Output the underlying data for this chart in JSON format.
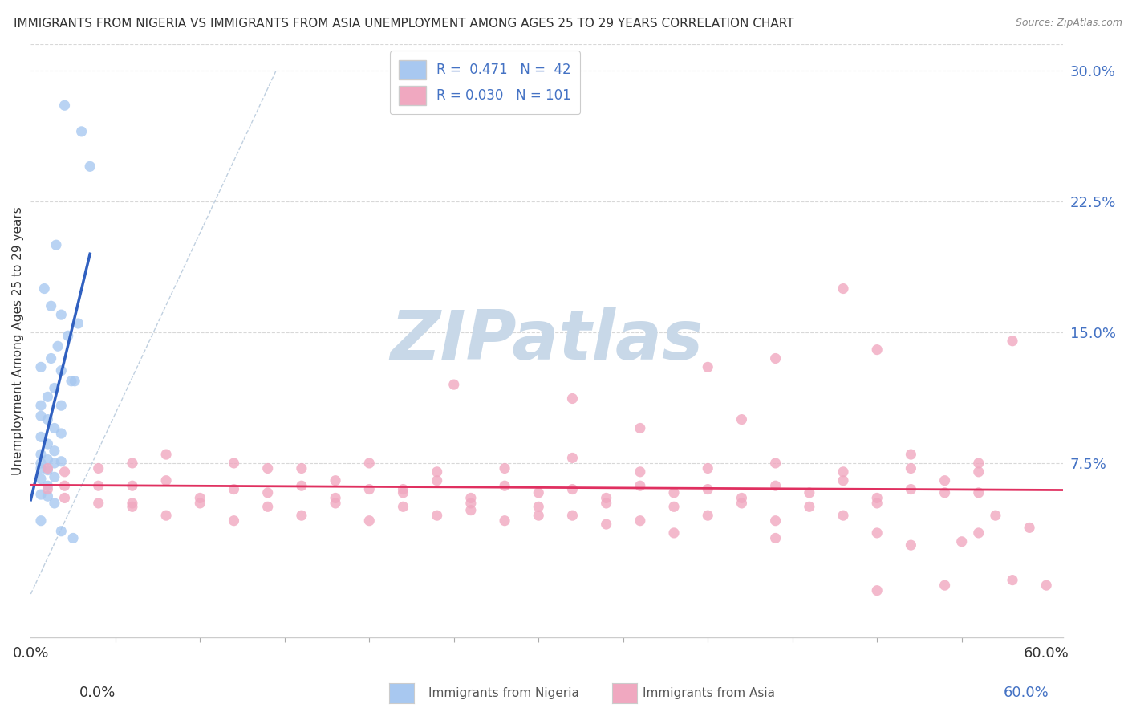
{
  "title": "IMMIGRANTS FROM NIGERIA VS IMMIGRANTS FROM ASIA UNEMPLOYMENT AMONG AGES 25 TO 29 YEARS CORRELATION CHART",
  "source": "Source: ZipAtlas.com",
  "ylabel": "Unemployment Among Ages 25 to 29 years",
  "nigeria_R": 0.471,
  "nigeria_N": 42,
  "asia_R": 0.03,
  "asia_N": 101,
  "nigeria_color": "#a8c8f0",
  "asia_color": "#f0a8c0",
  "nigeria_trend_color": "#3060c0",
  "asia_trend_color": "#e03060",
  "nigeria_scatter": [
    [
      0.02,
      0.28
    ],
    [
      0.03,
      0.265
    ],
    [
      0.035,
      0.245
    ],
    [
      0.015,
      0.2
    ],
    [
      0.008,
      0.175
    ],
    [
      0.012,
      0.165
    ],
    [
      0.018,
      0.16
    ],
    [
      0.028,
      0.155
    ],
    [
      0.022,
      0.148
    ],
    [
      0.016,
      0.142
    ],
    [
      0.012,
      0.135
    ],
    [
      0.006,
      0.13
    ],
    [
      0.018,
      0.128
    ],
    [
      0.024,
      0.122
    ],
    [
      0.014,
      0.118
    ],
    [
      0.026,
      0.122
    ],
    [
      0.01,
      0.113
    ],
    [
      0.006,
      0.108
    ],
    [
      0.018,
      0.108
    ],
    [
      0.006,
      0.102
    ],
    [
      0.01,
      0.1
    ],
    [
      0.014,
      0.095
    ],
    [
      0.018,
      0.092
    ],
    [
      0.006,
      0.09
    ],
    [
      0.01,
      0.086
    ],
    [
      0.014,
      0.082
    ],
    [
      0.006,
      0.08
    ],
    [
      0.01,
      0.077
    ],
    [
      0.006,
      0.075
    ],
    [
      0.014,
      0.075
    ],
    [
      0.018,
      0.076
    ],
    [
      0.006,
      0.072
    ],
    [
      0.01,
      0.071
    ],
    [
      0.014,
      0.067
    ],
    [
      0.006,
      0.066
    ],
    [
      0.01,
      0.062
    ],
    [
      0.006,
      0.057
    ],
    [
      0.01,
      0.056
    ],
    [
      0.014,
      0.052
    ],
    [
      0.006,
      0.042
    ],
    [
      0.018,
      0.036
    ],
    [
      0.025,
      0.032
    ]
  ],
  "asia_scatter": [
    [
      0.08,
      0.08
    ],
    [
      0.12,
      0.075
    ],
    [
      0.16,
      0.072
    ],
    [
      0.2,
      0.075
    ],
    [
      0.24,
      0.07
    ],
    [
      0.28,
      0.072
    ],
    [
      0.32,
      0.078
    ],
    [
      0.36,
      0.07
    ],
    [
      0.4,
      0.072
    ],
    [
      0.44,
      0.075
    ],
    [
      0.48,
      0.07
    ],
    [
      0.52,
      0.072
    ],
    [
      0.08,
      0.065
    ],
    [
      0.12,
      0.06
    ],
    [
      0.16,
      0.062
    ],
    [
      0.2,
      0.06
    ],
    [
      0.24,
      0.065
    ],
    [
      0.28,
      0.062
    ],
    [
      0.32,
      0.06
    ],
    [
      0.36,
      0.062
    ],
    [
      0.4,
      0.06
    ],
    [
      0.44,
      0.062
    ],
    [
      0.48,
      0.065
    ],
    [
      0.52,
      0.06
    ],
    [
      0.1,
      0.055
    ],
    [
      0.14,
      0.058
    ],
    [
      0.18,
      0.055
    ],
    [
      0.22,
      0.058
    ],
    [
      0.26,
      0.055
    ],
    [
      0.3,
      0.058
    ],
    [
      0.34,
      0.055
    ],
    [
      0.38,
      0.058
    ],
    [
      0.42,
      0.055
    ],
    [
      0.46,
      0.058
    ],
    [
      0.5,
      0.055
    ],
    [
      0.54,
      0.058
    ],
    [
      0.06,
      0.05
    ],
    [
      0.1,
      0.052
    ],
    [
      0.14,
      0.05
    ],
    [
      0.18,
      0.052
    ],
    [
      0.22,
      0.05
    ],
    [
      0.26,
      0.052
    ],
    [
      0.3,
      0.05
    ],
    [
      0.34,
      0.052
    ],
    [
      0.38,
      0.05
    ],
    [
      0.42,
      0.052
    ],
    [
      0.46,
      0.05
    ],
    [
      0.5,
      0.052
    ],
    [
      0.08,
      0.045
    ],
    [
      0.12,
      0.042
    ],
    [
      0.16,
      0.045
    ],
    [
      0.2,
      0.042
    ],
    [
      0.24,
      0.045
    ],
    [
      0.28,
      0.042
    ],
    [
      0.32,
      0.045
    ],
    [
      0.36,
      0.042
    ],
    [
      0.4,
      0.045
    ],
    [
      0.44,
      0.042
    ],
    [
      0.48,
      0.045
    ],
    [
      0.25,
      0.12
    ],
    [
      0.32,
      0.112
    ],
    [
      0.4,
      0.13
    ],
    [
      0.44,
      0.135
    ],
    [
      0.5,
      0.14
    ],
    [
      0.58,
      0.145
    ],
    [
      0.36,
      0.095
    ],
    [
      0.42,
      0.1
    ],
    [
      0.04,
      0.072
    ],
    [
      0.04,
      0.062
    ],
    [
      0.04,
      0.052
    ],
    [
      0.02,
      0.07
    ],
    [
      0.02,
      0.062
    ],
    [
      0.02,
      0.055
    ],
    [
      0.01,
      0.072
    ],
    [
      0.01,
      0.06
    ],
    [
      0.56,
      0.07
    ],
    [
      0.57,
      0.045
    ],
    [
      0.59,
      0.038
    ],
    [
      0.5,
      0.035
    ],
    [
      0.55,
      0.03
    ],
    [
      0.48,
      0.175
    ],
    [
      0.56,
      0.035
    ],
    [
      0.06,
      0.075
    ],
    [
      0.06,
      0.062
    ],
    [
      0.06,
      0.052
    ],
    [
      0.14,
      0.072
    ],
    [
      0.18,
      0.065
    ],
    [
      0.22,
      0.06
    ],
    [
      0.26,
      0.048
    ],
    [
      0.3,
      0.045
    ],
    [
      0.34,
      0.04
    ],
    [
      0.38,
      0.035
    ],
    [
      0.44,
      0.032
    ],
    [
      0.52,
      0.028
    ],
    [
      0.5,
      0.002
    ],
    [
      0.54,
      0.005
    ],
    [
      0.58,
      0.008
    ],
    [
      0.6,
      0.005
    ],
    [
      0.56,
      0.058
    ],
    [
      0.56,
      0.075
    ],
    [
      0.54,
      0.065
    ],
    [
      0.52,
      0.08
    ]
  ],
  "xlim": [
    0.0,
    0.61
  ],
  "ylim": [
    -0.025,
    0.315
  ],
  "ytick_vals": [
    0.075,
    0.15,
    0.225,
    0.3
  ],
  "ytick_labels": [
    "7.5%",
    "15.0%",
    "22.5%",
    "30.0%"
  ],
  "xtick_vals": [
    0.0,
    0.6
  ],
  "xtick_labels": [
    "0.0%",
    "60.0%"
  ],
  "xtick_minor_count": 11,
  "background_color": "#ffffff",
  "grid_color": "#d8d8d8",
  "grid_style": "--",
  "watermark_text": "ZIPatlas",
  "watermark_color": "#c8d8e8",
  "title_fontsize": 11,
  "legend_fontsize": 12,
  "axis_label_color": "#4472c4",
  "bottom_label_color": "#555555"
}
